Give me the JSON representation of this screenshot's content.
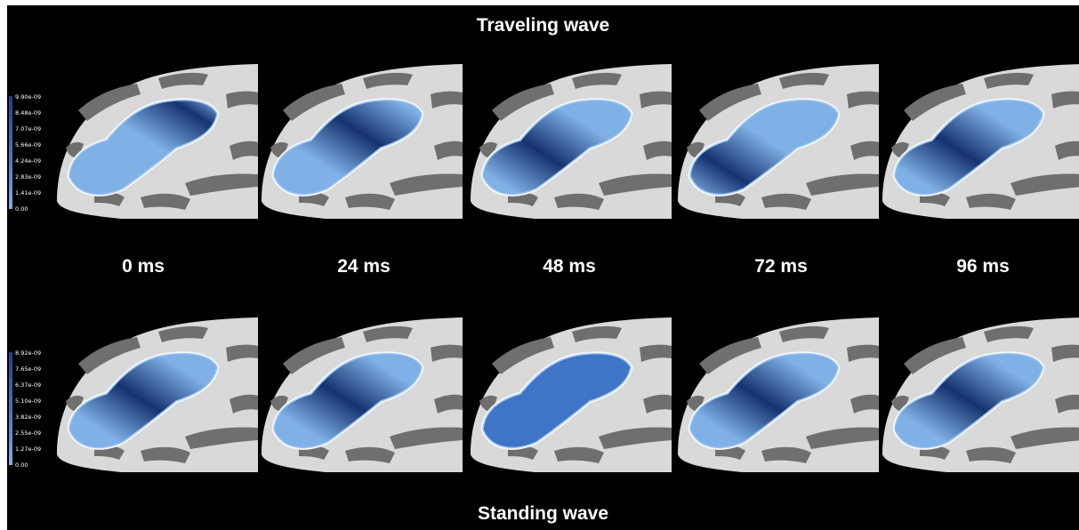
{
  "titles": {
    "top": "Traveling wave",
    "bottom": "Standing wave"
  },
  "time_labels": [
    "0 ms",
    "24 ms",
    "48 ms",
    "72 ms",
    "96 ms"
  ],
  "colorbar_top": {
    "ticks": [
      "9.90e-09",
      "8.48e-09",
      "7.07e-09",
      "5.66e-09",
      "4.24e-09",
      "2.83e-09",
      "1.41e-09",
      "0.00"
    ]
  },
  "colorbar_bottom": {
    "ticks": [
      "8.92e-09",
      "7.65e-09",
      "6.37e-09",
      "5.10e-09",
      "3.82e-09",
      "2.55e-09",
      "1.27e-09",
      "0.00"
    ]
  },
  "colors": {
    "background": "#000000",
    "cortex_light": "#d9d9d9",
    "cortex_dark": "#6f6f6f",
    "activation_light": "#7fb0e6",
    "activation_dark": "#16336f"
  },
  "traveling_peak_position": [
    0.85,
    0.62,
    0.42,
    0.25,
    0.45
  ],
  "standing_peak_position": [
    0.5,
    0.5,
    null,
    0.5,
    0.5
  ],
  "standing_amplitude": [
    1,
    1,
    0,
    1,
    1
  ]
}
